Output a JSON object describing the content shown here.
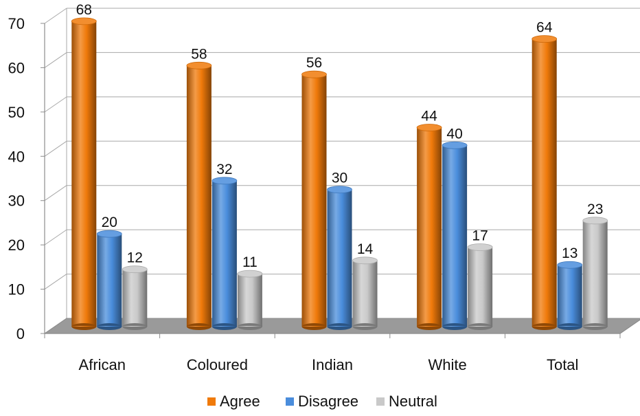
{
  "chart_data": {
    "type": "bar",
    "categories": [
      "African",
      "Coloured",
      "Indian",
      "White",
      "Total"
    ],
    "series": [
      {
        "name": "Agree",
        "values": [
          68,
          58,
          56,
          44,
          64
        ],
        "color": "#F07A0A"
      },
      {
        "name": "Disagree",
        "values": [
          20,
          32,
          30,
          40,
          13
        ],
        "color": "#4A8DDC"
      },
      {
        "name": "Neutral",
        "values": [
          12,
          11,
          14,
          17,
          23
        ],
        "color": "#C9C9C9"
      }
    ],
    "y_ticks": [
      "0",
      "10",
      "20",
      "30",
      "40",
      "50",
      "60",
      "70"
    ],
    "ylim": [
      0,
      70
    ],
    "grid": true,
    "legend_position": "bottom",
    "style": "3d-cylinder"
  }
}
